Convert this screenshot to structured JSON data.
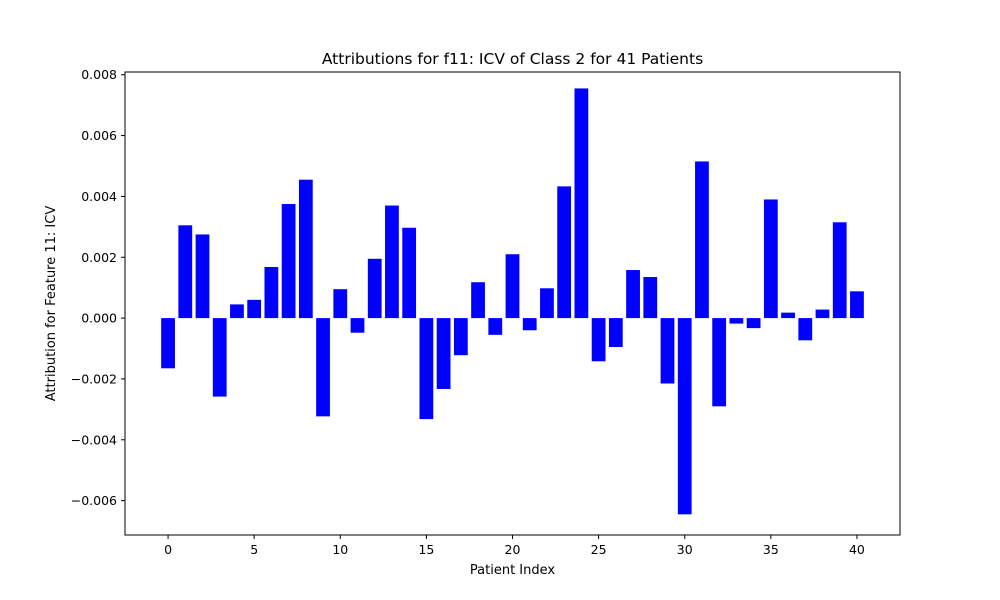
{
  "chart_data": {
    "type": "bar",
    "title": "Attributions for f11: ICV of Class 2 for 41 Patients",
    "xlabel": "Patient Index",
    "ylabel": "Attribution for Feature 11: ICV",
    "categories": [
      0,
      1,
      2,
      3,
      4,
      5,
      6,
      7,
      8,
      9,
      10,
      11,
      12,
      13,
      14,
      15,
      16,
      17,
      18,
      19,
      20,
      21,
      22,
      23,
      24,
      25,
      26,
      27,
      28,
      29,
      30,
      31,
      32,
      33,
      34,
      35,
      36,
      37,
      38,
      39,
      40
    ],
    "values": [
      -0.00165,
      0.00305,
      0.00275,
      -0.00258,
      0.00045,
      0.0006,
      0.00168,
      0.00375,
      0.00455,
      -0.00323,
      0.00095,
      -0.00048,
      0.00195,
      0.0037,
      0.00297,
      -0.00332,
      -0.00233,
      -0.00122,
      0.00118,
      -0.00055,
      0.0021,
      -0.0004,
      0.00098,
      0.00433,
      0.00755,
      -0.00142,
      -0.00095,
      0.00158,
      0.00135,
      -0.00215,
      -0.00645,
      0.00515,
      -0.0029,
      -0.00018,
      -0.00033,
      0.0039,
      0.00018,
      -0.00073,
      0.00028,
      0.00315,
      0.00088
    ],
    "xlim": [
      -2.5,
      42.5
    ],
    "ylim": [
      -0.00713,
      0.00809
    ],
    "xticks": [
      0,
      5,
      10,
      15,
      20,
      25,
      30,
      35,
      40
    ],
    "xtick_labels": [
      "0",
      "5",
      "10",
      "15",
      "20",
      "25",
      "30",
      "35",
      "40"
    ],
    "yticks": [
      -0.006,
      -0.004,
      -0.002,
      0,
      0.002,
      0.004,
      0.006,
      0.008
    ],
    "ytick_labels": [
      "−0.006",
      "−0.004",
      "−0.002",
      "0.000",
      "0.002",
      "0.004",
      "0.006",
      "0.008"
    ],
    "bar_color": "#0000ff",
    "grid": false,
    "legend": "none"
  }
}
